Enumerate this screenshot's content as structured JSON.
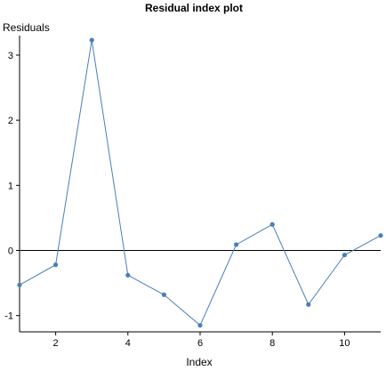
{
  "chart_data": {
    "type": "line",
    "title": "Residual index plot",
    "xlabel": "Index",
    "ylabel": "Residuals",
    "xlim": [
      1,
      11
    ],
    "ylim": [
      -1.25,
      3.3
    ],
    "xticks": [
      2,
      4,
      6,
      8,
      10
    ],
    "yticks": [
      -1,
      0,
      1,
      2,
      3
    ],
    "reference_line_y": 0,
    "grid": false,
    "colors": {
      "series": "#4a7ebb",
      "reference": "#000000",
      "axis": "#000000"
    },
    "series": [
      {
        "x": [
          1,
          2,
          3,
          4,
          5,
          6,
          7,
          8,
          9,
          10,
          11
        ],
        "values": [
          -0.53,
          -0.22,
          3.23,
          -0.38,
          -0.68,
          -1.15,
          0.09,
          0.4,
          -0.83,
          -0.07,
          0.23
        ]
      }
    ]
  }
}
